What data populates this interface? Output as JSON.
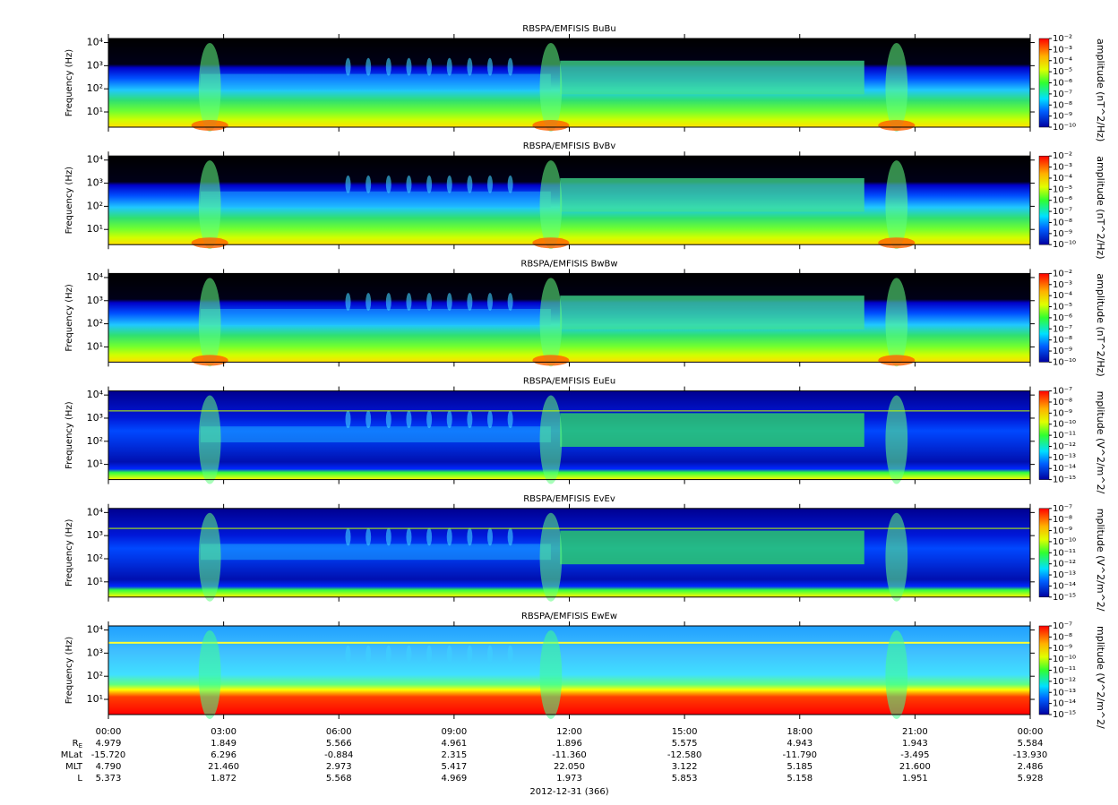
{
  "chart_data": [
    {
      "type": "spectrogram",
      "title": "RBSPA/EMFISIS  BuBu",
      "ylabel": "Frequency (Hz)",
      "ylim": [
        2.2,
        15000
      ],
      "log_y": true,
      "yticks": [
        {
          "value": 10,
          "label": "10¹"
        },
        {
          "value": 100,
          "label": "10²"
        },
        {
          "value": 1000,
          "label": "10³"
        },
        {
          "value": 10000,
          "label": "10⁴"
        }
      ],
      "colorbar_label": "amplitude (nT^2/Hz)",
      "clim": [
        1e-10,
        0.01
      ],
      "cticks": [
        {
          "value": 0.01,
          "label": "10⁻²"
        },
        {
          "value": 0.001,
          "label": "10⁻³"
        },
        {
          "value": 0.0001,
          "label": "10⁻⁴"
        },
        {
          "value": 1e-05,
          "label": "10⁻⁵"
        },
        {
          "value": 1e-06,
          "label": "10⁻⁶"
        },
        {
          "value": 1e-07,
          "label": "10⁻⁷"
        },
        {
          "value": 1e-08,
          "label": "10⁻⁸"
        },
        {
          "value": 1e-09,
          "label": "10⁻⁹"
        },
        {
          "value": 1e-10,
          "label": "10⁻¹⁰"
        }
      ]
    },
    {
      "type": "spectrogram",
      "title": "RBSPA/EMFISIS  BvBv",
      "ylabel": "Frequency (Hz)",
      "ylim": [
        2.2,
        15000
      ],
      "log_y": true,
      "yticks": [
        {
          "value": 10,
          "label": "10¹"
        },
        {
          "value": 100,
          "label": "10²"
        },
        {
          "value": 1000,
          "label": "10³"
        },
        {
          "value": 10000,
          "label": "10⁴"
        }
      ],
      "colorbar_label": "amplitude (nT^2/Hz)",
      "clim": [
        1e-10,
        0.01
      ],
      "cticks": [
        {
          "value": 0.01,
          "label": "10⁻²"
        },
        {
          "value": 0.001,
          "label": "10⁻³"
        },
        {
          "value": 0.0001,
          "label": "10⁻⁴"
        },
        {
          "value": 1e-05,
          "label": "10⁻⁵"
        },
        {
          "value": 1e-06,
          "label": "10⁻⁶"
        },
        {
          "value": 1e-07,
          "label": "10⁻⁷"
        },
        {
          "value": 1e-08,
          "label": "10⁻⁸"
        },
        {
          "value": 1e-09,
          "label": "10⁻⁹"
        },
        {
          "value": 1e-10,
          "label": "10⁻¹⁰"
        }
      ]
    },
    {
      "type": "spectrogram",
      "title": "RBSPA/EMFISIS  BwBw",
      "ylabel": "Frequency (Hz)",
      "ylim": [
        2.2,
        15000
      ],
      "log_y": true,
      "yticks": [
        {
          "value": 10,
          "label": "10¹"
        },
        {
          "value": 100,
          "label": "10²"
        },
        {
          "value": 1000,
          "label": "10³"
        },
        {
          "value": 10000,
          "label": "10⁴"
        }
      ],
      "colorbar_label": "amplitude (nT^2/Hz)",
      "clim": [
        1e-10,
        0.01
      ],
      "cticks": [
        {
          "value": 0.01,
          "label": "10⁻²"
        },
        {
          "value": 0.001,
          "label": "10⁻³"
        },
        {
          "value": 0.0001,
          "label": "10⁻⁴"
        },
        {
          "value": 1e-05,
          "label": "10⁻⁵"
        },
        {
          "value": 1e-06,
          "label": "10⁻⁶"
        },
        {
          "value": 1e-07,
          "label": "10⁻⁷"
        },
        {
          "value": 1e-08,
          "label": "10⁻⁸"
        },
        {
          "value": 1e-09,
          "label": "10⁻⁹"
        },
        {
          "value": 1e-10,
          "label": "10⁻¹⁰"
        }
      ]
    },
    {
      "type": "spectrogram",
      "title": "RBSPA/EMFISIS  EuEu",
      "ylabel": "Frequency (Hz)",
      "ylim": [
        2.2,
        15000
      ],
      "log_y": true,
      "yticks": [
        {
          "value": 10,
          "label": "10¹"
        },
        {
          "value": 100,
          "label": "10²"
        },
        {
          "value": 1000,
          "label": "10³"
        },
        {
          "value": 10000,
          "label": "10⁴"
        }
      ],
      "colorbar_label": "mplitude (V^2/m^2/",
      "clim": [
        1e-15,
        1e-07
      ],
      "cticks": [
        {
          "value": 1e-07,
          "label": "10⁻⁷"
        },
        {
          "value": 1e-08,
          "label": "10⁻⁸"
        },
        {
          "value": 1e-09,
          "label": "10⁻⁹"
        },
        {
          "value": 1e-10,
          "label": "10⁻¹⁰"
        },
        {
          "value": 1e-11,
          "label": "10⁻¹¹"
        },
        {
          "value": 1e-12,
          "label": "10⁻¹²"
        },
        {
          "value": 1e-13,
          "label": "10⁻¹³"
        },
        {
          "value": 1e-14,
          "label": "10⁻¹⁴"
        },
        {
          "value": 1e-15,
          "label": "10⁻¹⁵"
        }
      ]
    },
    {
      "type": "spectrogram",
      "title": "RBSPA/EMFISIS  EvEv",
      "ylabel": "Frequency (Hz)",
      "ylim": [
        2.2,
        15000
      ],
      "log_y": true,
      "yticks": [
        {
          "value": 10,
          "label": "10¹"
        },
        {
          "value": 100,
          "label": "10²"
        },
        {
          "value": 1000,
          "label": "10³"
        },
        {
          "value": 10000,
          "label": "10⁴"
        }
      ],
      "colorbar_label": "mplitude (V^2/m^2/",
      "clim": [
        1e-15,
        1e-07
      ],
      "cticks": [
        {
          "value": 1e-07,
          "label": "10⁻⁷"
        },
        {
          "value": 1e-08,
          "label": "10⁻⁸"
        },
        {
          "value": 1e-09,
          "label": "10⁻⁹"
        },
        {
          "value": 1e-10,
          "label": "10⁻¹⁰"
        },
        {
          "value": 1e-11,
          "label": "10⁻¹¹"
        },
        {
          "value": 1e-12,
          "label": "10⁻¹²"
        },
        {
          "value": 1e-13,
          "label": "10⁻¹³"
        },
        {
          "value": 1e-14,
          "label": "10⁻¹⁴"
        },
        {
          "value": 1e-15,
          "label": "10⁻¹⁵"
        }
      ]
    },
    {
      "type": "spectrogram",
      "title": "RBSPA/EMFISIS  EwEw",
      "ylabel": "Frequency (Hz)",
      "ylim": [
        2.2,
        15000
      ],
      "log_y": true,
      "yticks": [
        {
          "value": 10,
          "label": "10¹"
        },
        {
          "value": 100,
          "label": "10²"
        },
        {
          "value": 1000,
          "label": "10³"
        },
        {
          "value": 10000,
          "label": "10⁴"
        }
      ],
      "colorbar_label": "mplitude (V^2/m^2/",
      "clim": [
        1e-15,
        1e-07
      ],
      "cticks": [
        {
          "value": 1e-07,
          "label": "10⁻⁷"
        },
        {
          "value": 1e-08,
          "label": "10⁻⁸"
        },
        {
          "value": 1e-09,
          "label": "10⁻⁹"
        },
        {
          "value": 1e-10,
          "label": "10⁻¹⁰"
        },
        {
          "value": 1e-11,
          "label": "10⁻¹¹"
        },
        {
          "value": 1e-12,
          "label": "10⁻¹²"
        },
        {
          "value": 1e-13,
          "label": "10⁻¹³"
        },
        {
          "value": 1e-14,
          "label": "10⁻¹⁴"
        },
        {
          "value": 1e-15,
          "label": "10⁻¹⁵"
        }
      ]
    }
  ],
  "time_axis": {
    "xlim": [
      0,
      24
    ],
    "xticks": [
      {
        "value": 0,
        "label": "00:00"
      },
      {
        "value": 3,
        "label": "03:00"
      },
      {
        "value": 6,
        "label": "06:00"
      },
      {
        "value": 9,
        "label": "09:00"
      },
      {
        "value": 12,
        "label": "12:00"
      },
      {
        "value": 15,
        "label": "15:00"
      },
      {
        "value": 18,
        "label": "18:00"
      },
      {
        "value": 21,
        "label": "21:00"
      },
      {
        "value": 24,
        "label": "00:00"
      }
    ],
    "rows": [
      {
        "label": "R",
        "label_sub": "E",
        "values": [
          "4.979",
          "1.849",
          "5.566",
          "4.961",
          "1.896",
          "5.575",
          "4.943",
          "1.943",
          "5.584"
        ]
      },
      {
        "label": "MLat",
        "values": [
          "-15.720",
          "6.296",
          "-0.884",
          "2.315",
          "-11.360",
          "-12.580",
          "-11.790",
          "-3.495",
          "-13.930"
        ]
      },
      {
        "label": "MLT",
        "values": [
          "4.790",
          "21.460",
          "2.973",
          "5.417",
          "22.050",
          "3.122",
          "5.185",
          "21.600",
          "2.486"
        ]
      },
      {
        "label": "L",
        "values": [
          "5.373",
          "1.872",
          "5.568",
          "4.969",
          "1.973",
          "5.853",
          "5.158",
          "1.951",
          "5.928"
        ]
      }
    ],
    "date_label": "2012-12-31 (366)"
  }
}
